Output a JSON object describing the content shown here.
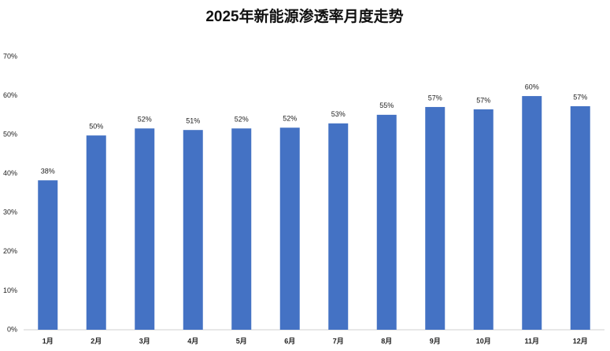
{
  "chart_data": {
    "type": "bar",
    "title": "2025年新能源渗透率月度走势",
    "categories": [
      "1月",
      "2月",
      "3月",
      "4月",
      "5月",
      "6月",
      "7月",
      "8月",
      "9月",
      "10月",
      "11月",
      "12月"
    ],
    "values": [
      38.3,
      49.8,
      51.6,
      51.2,
      51.6,
      51.8,
      52.9,
      55.1,
      57.1,
      56.5,
      59.9,
      57.3
    ],
    "value_labels": [
      "38%",
      "50%",
      "52%",
      "51%",
      "52%",
      "52%",
      "53%",
      "55%",
      "57%",
      "57%",
      "60%",
      "57%"
    ],
    "color": "#4472c4",
    "ylim": [
      0,
      70
    ],
    "yticks": [
      {
        "value": 0,
        "label": "0%"
      },
      {
        "value": 10,
        "label": "10%"
      },
      {
        "value": 20,
        "label": "20%"
      },
      {
        "value": 30,
        "label": "30%"
      },
      {
        "value": 40,
        "label": "40%"
      },
      {
        "value": 50,
        "label": "50%"
      },
      {
        "value": 60,
        "label": "60%"
      },
      {
        "value": 70,
        "label": "70%"
      }
    ],
    "grid": false
  }
}
